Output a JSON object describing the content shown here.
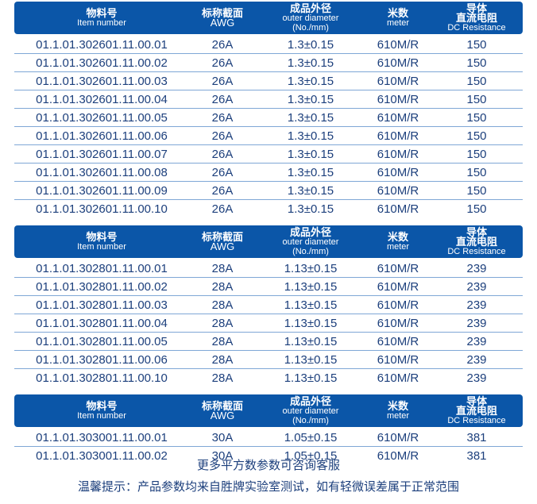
{
  "header": {
    "item_zh": "物料号",
    "item_en": "Item number",
    "awg_zh": "标称截面",
    "awg_en": "AWG",
    "od_zh": "成品外径",
    "od_en": "outer diameter",
    "od_unit": "(No./mm)",
    "meter_zh": "米数",
    "meter_en": "meter",
    "dc_zh1": "导体",
    "dc_zh2": "直流电阻",
    "dc_en": "DC Resistance"
  },
  "groups": [
    {
      "rows": [
        [
          "01.1.01.302601.11.00.01",
          "26A",
          "1.3±0.15",
          "610M/R",
          "150"
        ],
        [
          "01.1.01.302601.11.00.02",
          "26A",
          "1.3±0.15",
          "610M/R",
          "150"
        ],
        [
          "01.1.01.302601.11.00.03",
          "26A",
          "1.3±0.15",
          "610M/R",
          "150"
        ],
        [
          "01.1.01.302601.11.00.04",
          "26A",
          "1.3±0.15",
          "610M/R",
          "150"
        ],
        [
          "01.1.01.302601.11.00.05",
          "26A",
          "1.3±0.15",
          "610M/R",
          "150"
        ],
        [
          "01.1.01.302601.11.00.06",
          "26A",
          "1.3±0.15",
          "610M/R",
          "150"
        ],
        [
          "01.1.01.302601.11.00.07",
          "26A",
          "1.3±0.15",
          "610M/R",
          "150"
        ],
        [
          "01.1.01.302601.11.00.08",
          "26A",
          "1.3±0.15",
          "610M/R",
          "150"
        ],
        [
          "01.1.01.302601.11.00.09",
          "26A",
          "1.3±0.15",
          "610M/R",
          "150"
        ],
        [
          "01.1.01.302601.11.00.10",
          "26A",
          "1.3±0.15",
          "610M/R",
          "150"
        ]
      ]
    },
    {
      "rows": [
        [
          "01.1.01.302801.11.00.01",
          "28A",
          "1.13±0.15",
          "610M/R",
          "239"
        ],
        [
          "01.1.01.302801.11.00.02",
          "28A",
          "1.13±0.15",
          "610M/R",
          "239"
        ],
        [
          "01.1.01.302801.11.00.03",
          "28A",
          "1.13±0.15",
          "610M/R",
          "239"
        ],
        [
          "01.1.01.302801.11.00.04",
          "28A",
          "1.13±0.15",
          "610M/R",
          "239"
        ],
        [
          "01.1.01.302801.11.00.05",
          "28A",
          "1.13±0.15",
          "610M/R",
          "239"
        ],
        [
          "01.1.01.302801.11.00.06",
          "28A",
          "1.13±0.15",
          "610M/R",
          "239"
        ],
        [
          "01.1.01.302801.11.00.10",
          "28A",
          "1.13±0.15",
          "610M/R",
          "239"
        ]
      ]
    },
    {
      "rows": [
        [
          "01.1.01.303001.11.00.01",
          "30A",
          "1.05±0.15",
          "610M/R",
          "381"
        ],
        [
          "01.1.01.303001.11.00.02",
          "30A",
          "1.05±0.15",
          "610M/R",
          "381"
        ]
      ]
    }
  ],
  "footer": {
    "more": "更多平方数参数可咨询客服",
    "tip": "温馨提示：产品参数均来自胜牌实验室测试，如有轻微误差属于正常范围"
  },
  "colors": {
    "header_bg": "#0b56a8",
    "text": "#1c3f7c",
    "divider": "#7fa7d6"
  }
}
